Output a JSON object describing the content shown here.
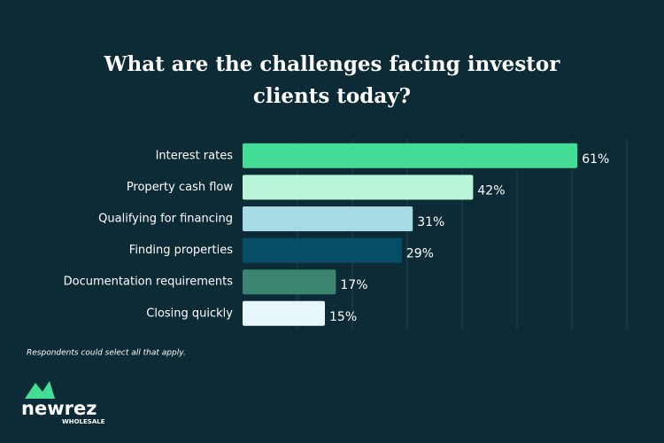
{
  "chart_data": {
    "type": "hbar",
    "title": [
      "What are the challenges facing investor",
      "clients today?"
    ],
    "categories": [
      "Interest rates",
      "Property cash flow",
      "Qualifying for financing",
      "Finding properties",
      "Documentation requirements",
      "Closing quickly"
    ],
    "values": [
      61,
      42,
      31,
      29,
      17,
      15
    ],
    "value_labels": [
      "61%",
      "42%",
      "31%",
      "29%",
      "17%",
      "15%"
    ],
    "colors": [
      "#43dd96",
      "#b8f5d9",
      "#a6dbe6",
      "#064e66",
      "#3b8570",
      "#e6f6fb"
    ],
    "xlim": [
      0,
      70
    ],
    "xticks": [
      10,
      20,
      30,
      40,
      50,
      60,
      70
    ],
    "grid": true,
    "footnote": "Respondents could select all that apply."
  },
  "logo": {
    "name": "newrez",
    "sub": "WHOLESALE"
  }
}
